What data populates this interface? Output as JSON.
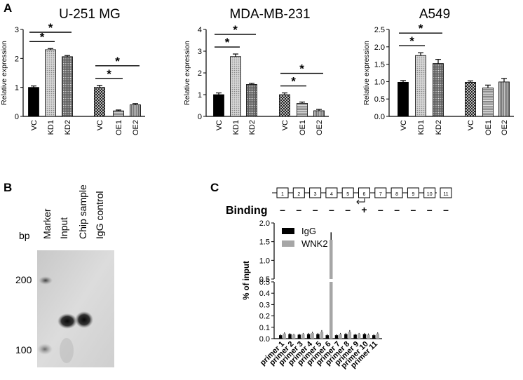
{
  "panels": {
    "a": "A",
    "b": "B",
    "c": "C"
  },
  "chart_data": [
    {
      "type": "bar",
      "title": "U-251 MG",
      "ylabel": "Relative expression",
      "ylim": [
        0,
        3
      ],
      "yticks": [
        "0",
        "1",
        "2",
        "3"
      ],
      "categories": [
        "VC",
        "KD1",
        "KD2",
        "VC",
        "OE1",
        "OE2"
      ],
      "values": [
        1.0,
        2.3,
        2.06,
        1.0,
        0.19,
        0.4
      ],
      "errors": [
        0.05,
        0.04,
        0.04,
        0.07,
        0.03,
        0.04
      ],
      "significance": [
        {
          "from": 0,
          "to": 1,
          "label": "*"
        },
        {
          "from": 0,
          "to": 2,
          "label": "*"
        },
        {
          "from": 3,
          "to": 4,
          "label": "*"
        },
        {
          "from": 3,
          "to": 5,
          "label": "*"
        }
      ]
    },
    {
      "type": "bar",
      "title": "MDA-MB-231",
      "ylabel": "Relative expression",
      "ylim": [
        0,
        4
      ],
      "yticks": [
        "0",
        "1",
        "2",
        "3",
        "4"
      ],
      "categories": [
        "VC",
        "KD1",
        "KD2",
        "VC",
        "OE1",
        "OE2"
      ],
      "values": [
        1.0,
        2.75,
        1.47,
        1.0,
        0.6,
        0.26
      ],
      "errors": [
        0.08,
        0.12,
        0.05,
        0.08,
        0.06,
        0.06
      ],
      "significance": [
        {
          "from": 0,
          "to": 1,
          "label": "*"
        },
        {
          "from": 0,
          "to": 2,
          "label": "*"
        },
        {
          "from": 3,
          "to": 4,
          "label": "*"
        },
        {
          "from": 3,
          "to": 5,
          "label": "*"
        }
      ]
    },
    {
      "type": "bar",
      "title": "A549",
      "ylabel": "Relative expression",
      "ylim": [
        0,
        2.5
      ],
      "yticks": [
        "0.0",
        "0.5",
        "1.0",
        "1.5",
        "2.0",
        "2.5"
      ],
      "categories": [
        "VC",
        "KD1",
        "KD2",
        "VC",
        "OE1",
        "OE2"
      ],
      "values": [
        0.98,
        1.75,
        1.52,
        0.98,
        0.82,
        0.99
      ],
      "errors": [
        0.05,
        0.08,
        0.12,
        0.04,
        0.08,
        0.1
      ],
      "significance": [
        {
          "from": 0,
          "to": 1,
          "label": "*"
        },
        {
          "from": 0,
          "to": 2,
          "label": "*"
        }
      ]
    },
    {
      "type": "bar",
      "ylabel": "% of input",
      "ylim": [
        0,
        2.0
      ],
      "axis_break": [
        0.5,
        0.55
      ],
      "yticks_lower": [
        "0.0",
        "0.1",
        "0.2",
        "0.3",
        "0.4",
        "0.5"
      ],
      "yticks_upper": [
        "0.5",
        "1.0",
        "1.5",
        "2.0"
      ],
      "legend_position": "top-left",
      "categories": [
        "primer 1",
        "primer 2",
        "primer 3",
        "primer 4",
        "primer 5",
        "primer 6",
        "primer 7",
        "primer 8",
        "primer 9",
        "primer 10",
        "primer 11"
      ],
      "series": [
        {
          "name": "IgG",
          "color": "#000000",
          "values": [
            0.03,
            0.04,
            0.035,
            0.04,
            0.04,
            0.03,
            0.03,
            0.04,
            0.035,
            0.04,
            0.03
          ],
          "errors": [
            0.008,
            0.008,
            0.008,
            0.01,
            0.01,
            0.01,
            0.008,
            0.01,
            0.008,
            0.01,
            0.008
          ]
        },
        {
          "name": "WNK2",
          "color": "#a6a6a6",
          "values": [
            0.045,
            0.035,
            0.04,
            0.05,
            0.06,
            1.55,
            0.04,
            0.06,
            0.04,
            0.035,
            0.045
          ],
          "errors": [
            0.01,
            0.008,
            0.01,
            0.01,
            0.015,
            0.2,
            0.01,
            0.015,
            0.01,
            0.01,
            0.01
          ]
        }
      ],
      "exons": [
        "1",
        "2",
        "3",
        "4",
        "5",
        "6",
        "7",
        "8",
        "9",
        "10",
        "11"
      ],
      "binding_label": "Binding",
      "binding_marks": [
        "-",
        "-",
        "-",
        "-",
        "-",
        "+",
        "-",
        "-",
        "-",
        "-",
        "-"
      ]
    }
  ],
  "gel": {
    "bp_label": "bp",
    "lanes": [
      "Marker",
      "Input",
      "Chip sample",
      "IgG control"
    ],
    "markers": [
      "200",
      "100"
    ]
  }
}
